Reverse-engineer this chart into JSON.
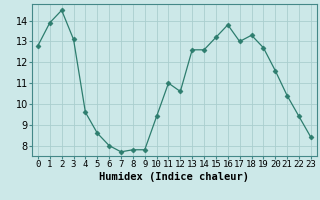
{
  "x": [
    0,
    1,
    2,
    3,
    4,
    5,
    6,
    7,
    8,
    9,
    10,
    11,
    12,
    13,
    14,
    15,
    16,
    17,
    18,
    19,
    20,
    21,
    22,
    23
  ],
  "y": [
    12.8,
    13.9,
    14.5,
    13.1,
    9.6,
    8.6,
    8.0,
    7.7,
    7.8,
    7.8,
    9.4,
    11.0,
    10.6,
    12.6,
    12.6,
    13.2,
    13.8,
    13.0,
    13.3,
    12.7,
    11.6,
    10.4,
    9.4,
    8.4
  ],
  "line_color": "#2d7d6e",
  "marker": "D",
  "marker_size": 2.5,
  "bg_color": "#cce8e8",
  "grid_color": "#aacece",
  "xlabel": "Humidex (Indice chaleur)",
  "xlim": [
    -0.5,
    23.5
  ],
  "ylim": [
    7.5,
    14.8
  ],
  "yticks": [
    8,
    9,
    10,
    11,
    12,
    13,
    14
  ],
  "xlabel_fontsize": 7.5,
  "tick_fontsize": 6.5,
  "ytick_fontsize": 7
}
